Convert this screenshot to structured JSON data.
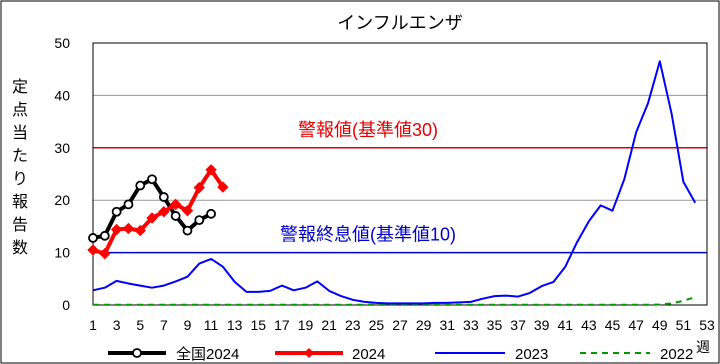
{
  "chart_data": {
    "type": "line",
    "title": "インフルエンザ",
    "ylabel": "定点当たり報告数",
    "xlabel": "週",
    "ylim": [
      0,
      50
    ],
    "yticks": [
      0,
      10,
      20,
      30,
      40,
      50
    ],
    "xlim": [
      1,
      53
    ],
    "xticks": [
      1,
      3,
      5,
      7,
      9,
      11,
      13,
      15,
      17,
      19,
      21,
      23,
      25,
      27,
      29,
      31,
      33,
      35,
      37,
      39,
      41,
      43,
      45,
      47,
      49,
      51,
      53
    ],
    "grid": true,
    "legend_position": "bottom",
    "reference_lines": [
      {
        "label": "警報値(基準値30)",
        "value": 30,
        "color": "#e00000"
      },
      {
        "label": "警報終息値(基準値10)",
        "value": 10,
        "color": "#0000cc"
      }
    ],
    "series": [
      {
        "name": "全国2024",
        "color": "#000000",
        "style": "solid-circle",
        "x": [
          1,
          2,
          3,
          4,
          5,
          6,
          7,
          8,
          9,
          10,
          11
        ],
        "values": [
          12.8,
          13.2,
          17.8,
          19.2,
          22.8,
          24.0,
          20.6,
          17.0,
          14.2,
          16.2,
          17.4
        ]
      },
      {
        "name": "2024",
        "color": "#ff0000",
        "style": "solid-diamond",
        "x": [
          1,
          2,
          3,
          4,
          5,
          6,
          7,
          8,
          9,
          10,
          11,
          12
        ],
        "values": [
          10.5,
          9.8,
          14.4,
          14.6,
          14.2,
          16.6,
          17.8,
          19.2,
          18.0,
          22.4,
          25.8,
          22.5
        ]
      },
      {
        "name": "2023",
        "color": "#0000ff",
        "style": "solid",
        "x": [
          1,
          2,
          3,
          4,
          5,
          6,
          7,
          8,
          9,
          10,
          11,
          12,
          13,
          14,
          15,
          16,
          17,
          18,
          19,
          20,
          21,
          22,
          23,
          24,
          25,
          26,
          27,
          28,
          29,
          30,
          31,
          32,
          33,
          34,
          35,
          36,
          37,
          38,
          39,
          40,
          41,
          42,
          43,
          44,
          45,
          46,
          47,
          48,
          49,
          50,
          51,
          52
        ],
        "values": [
          2.8,
          3.3,
          4.6,
          4.1,
          3.7,
          3.3,
          3.7,
          4.5,
          5.4,
          7.9,
          8.8,
          7.3,
          4.4,
          2.5,
          2.5,
          2.7,
          3.7,
          2.8,
          3.3,
          4.5,
          2.7,
          1.7,
          1.0,
          0.6,
          0.4,
          0.3,
          0.3,
          0.3,
          0.3,
          0.4,
          0.4,
          0.5,
          0.6,
          1.2,
          1.7,
          1.8,
          1.6,
          2.3,
          3.6,
          4.4,
          7.3,
          12.0,
          16.0,
          19.0,
          18.0,
          24.0,
          33.0,
          38.5,
          46.5,
          36.5,
          23.5,
          19.5
        ]
      },
      {
        "name": "2022",
        "color": "#009900",
        "style": "dashed",
        "x": [
          1,
          2,
          3,
          4,
          5,
          6,
          7,
          8,
          9,
          10,
          11,
          12,
          13,
          14,
          15,
          16,
          17,
          18,
          19,
          20,
          21,
          22,
          23,
          24,
          25,
          26,
          27,
          28,
          29,
          30,
          31,
          32,
          33,
          34,
          35,
          36,
          37,
          38,
          39,
          40,
          41,
          42,
          43,
          44,
          45,
          46,
          47,
          48,
          49,
          50,
          51,
          52
        ],
        "values": [
          0.05,
          0.05,
          0.05,
          0.05,
          0.05,
          0.05,
          0.05,
          0.05,
          0.05,
          0.05,
          0.05,
          0.05,
          0.05,
          0.05,
          0.05,
          0.05,
          0.05,
          0.05,
          0.05,
          0.05,
          0.05,
          0.05,
          0.05,
          0.05,
          0.05,
          0.05,
          0.05,
          0.05,
          0.05,
          0.05,
          0.05,
          0.05,
          0.05,
          0.05,
          0.05,
          0.05,
          0.05,
          0.05,
          0.05,
          0.05,
          0.05,
          0.05,
          0.05,
          0.05,
          0.05,
          0.05,
          0.05,
          0.05,
          0.1,
          0.3,
          0.8,
          1.5
        ]
      }
    ]
  }
}
